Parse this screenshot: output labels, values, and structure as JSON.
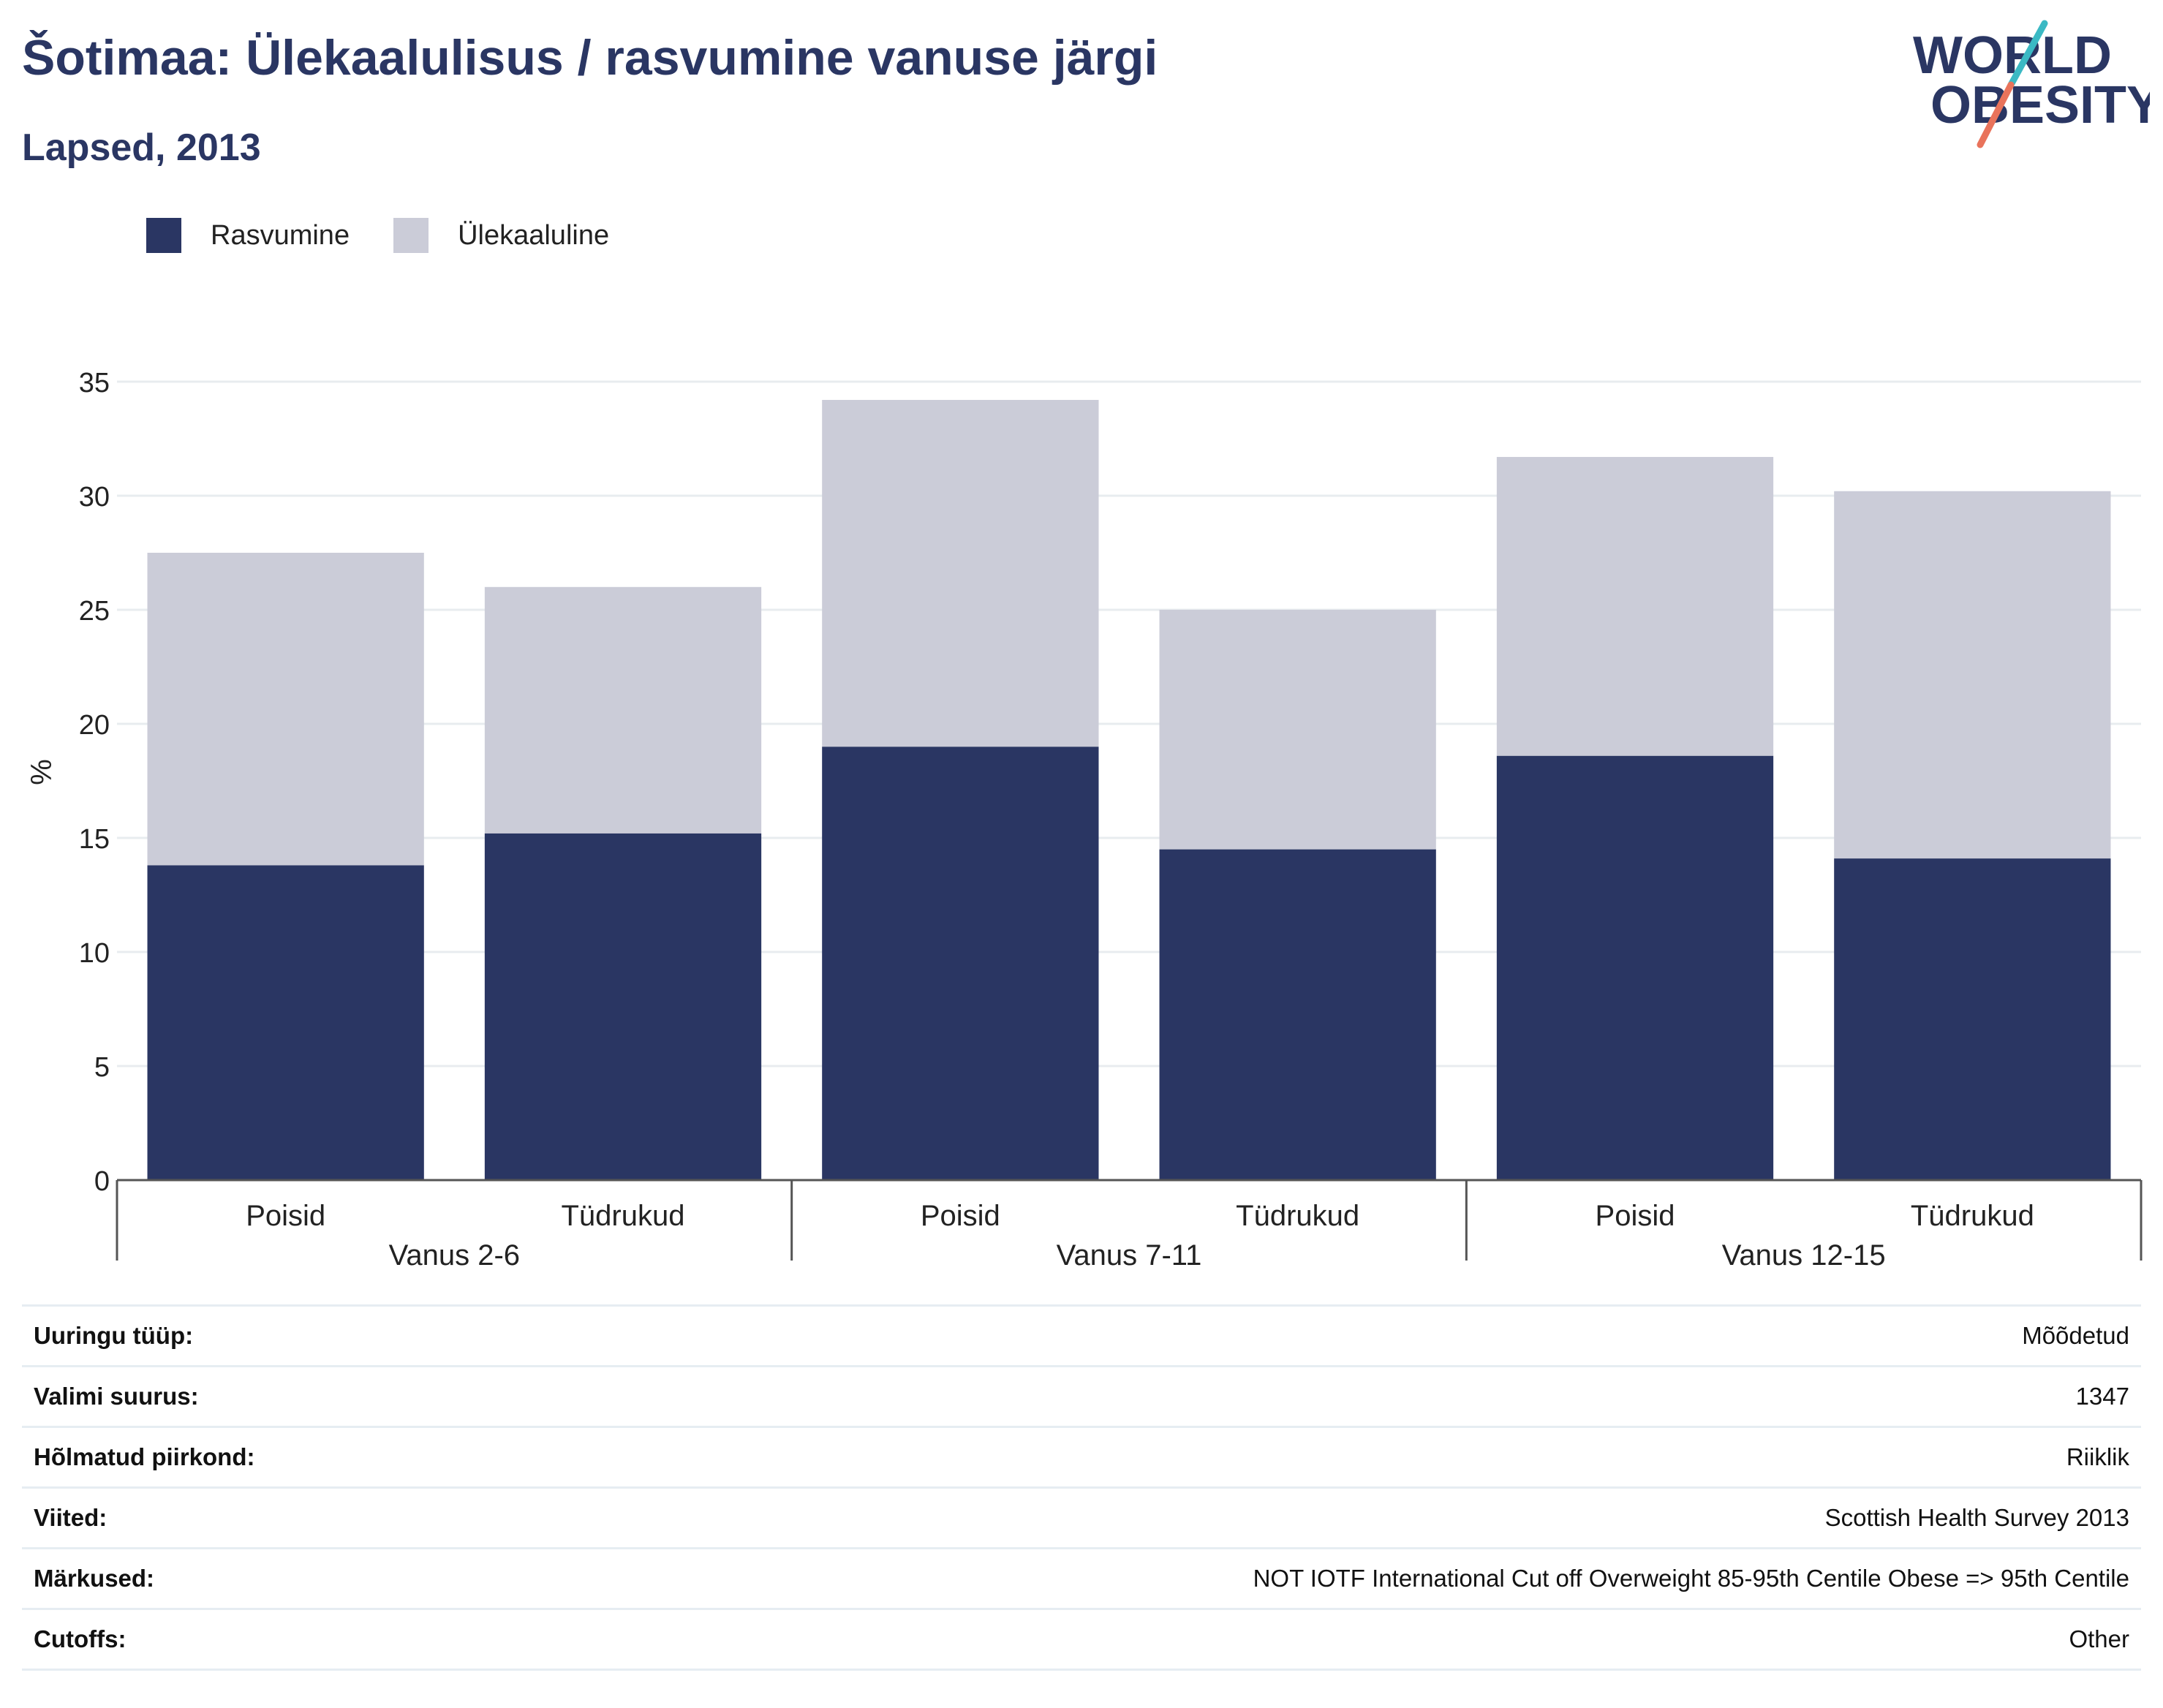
{
  "header": {
    "title": "Šotimaa: Ülekaalulisus / rasvumine vanuse järgi",
    "subtitle": "Lapsed, 2013"
  },
  "logo": {
    "line1": "WORLD",
    "line2": "OBESITY",
    "accent_teal": "#3bb9c4",
    "accent_coral": "#e9735b"
  },
  "legend": [
    {
      "label": "Rasvumine",
      "color": "#2a3663"
    },
    {
      "label": "Ülekaaluline",
      "color": "#cbccd8"
    }
  ],
  "chart_data": {
    "type": "bar",
    "stacked": true,
    "ylabel": "%",
    "ylim": [
      0,
      35
    ],
    "yticks": [
      "0",
      "5",
      "10",
      "15",
      "20",
      "25",
      "30",
      "35"
    ],
    "grid": true,
    "legend_position": "top-left",
    "groups": [
      {
        "label": "Vanus 2-6",
        "categories": [
          "Poisid",
          "Tüdrukud"
        ]
      },
      {
        "label": "Vanus 7-11",
        "categories": [
          "Poisid",
          "Tüdrukud"
        ]
      },
      {
        "label": "Vanus 12-15",
        "categories": [
          "Poisid",
          "Tüdrukud"
        ]
      }
    ],
    "series": [
      {
        "name": "Rasvumine",
        "color": "#2a3663",
        "values": [
          13.8,
          15.2,
          19.0,
          14.5,
          18.6,
          14.1
        ]
      },
      {
        "name": "Ülekaaluline",
        "color": "#cbccd8",
        "values": [
          13.7,
          10.8,
          15.2,
          10.5,
          13.1,
          16.1
        ]
      }
    ]
  },
  "meta": [
    {
      "key": "Uuringu tüüp:",
      "value": "Mõõdetud"
    },
    {
      "key": "Valimi suurus:",
      "value": "1347"
    },
    {
      "key": "Hõlmatud piirkond:",
      "value": "Riiklik"
    },
    {
      "key": "Viited:",
      "value": "Scottish Health Survey 2013"
    },
    {
      "key": "Märkused:",
      "value": "NOT IOTF International Cut off Overweight 85-95th Centile Obese => 95th Centile"
    },
    {
      "key": "Cutoffs:",
      "value": "Other"
    }
  ]
}
